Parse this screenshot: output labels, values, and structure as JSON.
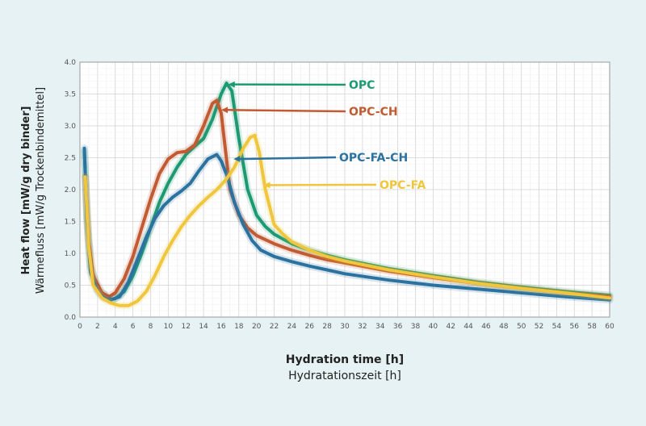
{
  "chart_data": {
    "type": "line",
    "title": "",
    "ylabel": "Heat flow [mW/g dry binder]",
    "ylabel_secondary": "Wärmefluss [mW/g Trockenbindemittel]",
    "xlabel": "Hydration time [h]",
    "xlabel_secondary": "Hydratationszeit [h]",
    "xlim": [
      0,
      60
    ],
    "ylim": [
      0,
      4.0
    ],
    "x_ticks": [
      "0",
      "2",
      "4",
      "6",
      "8",
      "10",
      "12",
      "14",
      "16",
      "18",
      "20",
      "22",
      "24",
      "26",
      "28",
      "30",
      "32",
      "34",
      "36",
      "38",
      "40",
      "42",
      "44",
      "46",
      "48",
      "50",
      "52",
      "54",
      "56",
      "58",
      "60"
    ],
    "y_ticks": [
      "0.0",
      "0.5",
      "1.0",
      "1.5",
      "2.0",
      "2.5",
      "3.0",
      "3.5",
      "4.0"
    ],
    "grid": true,
    "legend": "inline arrows at right",
    "series": [
      {
        "name": "OPC",
        "color": "#1e9a72",
        "points": [
          [
            0.5,
            2.6
          ],
          [
            0.8,
            1.6
          ],
          [
            1.2,
            0.8
          ],
          [
            2,
            0.45
          ],
          [
            3,
            0.32
          ],
          [
            3.5,
            0.28
          ],
          [
            4,
            0.29
          ],
          [
            5,
            0.4
          ],
          [
            6,
            0.65
          ],
          [
            7,
            1.0
          ],
          [
            8,
            1.4
          ],
          [
            9,
            1.8
          ],
          [
            10,
            2.1
          ],
          [
            11,
            2.35
          ],
          [
            12,
            2.55
          ],
          [
            13,
            2.68
          ],
          [
            14,
            2.8
          ],
          [
            15,
            3.1
          ],
          [
            16,
            3.5
          ],
          [
            16.6,
            3.67
          ],
          [
            17.2,
            3.55
          ],
          [
            18,
            2.8
          ],
          [
            19,
            2.0
          ],
          [
            20,
            1.6
          ],
          [
            21,
            1.42
          ],
          [
            22,
            1.3
          ],
          [
            24,
            1.15
          ],
          [
            26,
            1.05
          ],
          [
            28,
            0.97
          ],
          [
            30,
            0.9
          ],
          [
            35,
            0.76
          ],
          [
            40,
            0.65
          ],
          [
            45,
            0.55
          ],
          [
            50,
            0.47
          ],
          [
            55,
            0.4
          ],
          [
            60,
            0.34
          ]
        ]
      },
      {
        "name": "OPC-CH",
        "color": "#c25a32",
        "points": [
          [
            0.6,
            2.2
          ],
          [
            1,
            1.2
          ],
          [
            1.5,
            0.65
          ],
          [
            2.5,
            0.38
          ],
          [
            3.3,
            0.32
          ],
          [
            4,
            0.38
          ],
          [
            5,
            0.6
          ],
          [
            6,
            0.95
          ],
          [
            7,
            1.4
          ],
          [
            8,
            1.85
          ],
          [
            9,
            2.25
          ],
          [
            10,
            2.48
          ],
          [
            11,
            2.58
          ],
          [
            12,
            2.6
          ],
          [
            13,
            2.7
          ],
          [
            14,
            3.0
          ],
          [
            15,
            3.35
          ],
          [
            15.5,
            3.4
          ],
          [
            16,
            3.2
          ],
          [
            16.5,
            2.6
          ],
          [
            17,
            2.0
          ],
          [
            18,
            1.6
          ],
          [
            19,
            1.4
          ],
          [
            20,
            1.28
          ],
          [
            22,
            1.15
          ],
          [
            24,
            1.05
          ],
          [
            26,
            0.97
          ],
          [
            28,
            0.9
          ],
          [
            30,
            0.85
          ],
          [
            35,
            0.72
          ],
          [
            40,
            0.62
          ],
          [
            45,
            0.53
          ],
          [
            50,
            0.45
          ],
          [
            55,
            0.38
          ],
          [
            60,
            0.32
          ]
        ]
      },
      {
        "name": "OPC-FA-CH",
        "color": "#2b72a0",
        "points": [
          [
            0.5,
            2.65
          ],
          [
            0.8,
            1.5
          ],
          [
            1.2,
            0.7
          ],
          [
            2,
            0.4
          ],
          [
            2.7,
            0.3
          ],
          [
            3.5,
            0.27
          ],
          [
            4.5,
            0.32
          ],
          [
            5.5,
            0.55
          ],
          [
            6.5,
            0.9
          ],
          [
            7.5,
            1.25
          ],
          [
            8.5,
            1.55
          ],
          [
            9.5,
            1.75
          ],
          [
            10.5,
            1.88
          ],
          [
            11.5,
            1.98
          ],
          [
            12.5,
            2.1
          ],
          [
            13.5,
            2.3
          ],
          [
            14.5,
            2.48
          ],
          [
            15.5,
            2.55
          ],
          [
            16,
            2.45
          ],
          [
            16.7,
            2.2
          ],
          [
            17.5,
            1.8
          ],
          [
            18.5,
            1.45
          ],
          [
            19.5,
            1.2
          ],
          [
            20.5,
            1.05
          ],
          [
            22,
            0.95
          ],
          [
            24,
            0.87
          ],
          [
            26,
            0.8
          ],
          [
            28,
            0.74
          ],
          [
            30,
            0.68
          ],
          [
            35,
            0.58
          ],
          [
            40,
            0.5
          ],
          [
            45,
            0.44
          ],
          [
            50,
            0.38
          ],
          [
            55,
            0.32
          ],
          [
            60,
            0.27
          ]
        ]
      },
      {
        "name": "OPC-FA",
        "color": "#f0c63c",
        "points": [
          [
            0.6,
            2.2
          ],
          [
            1,
            1.1
          ],
          [
            1.5,
            0.5
          ],
          [
            2.5,
            0.3
          ],
          [
            3.5,
            0.22
          ],
          [
            4.5,
            0.18
          ],
          [
            5.5,
            0.18
          ],
          [
            6.5,
            0.25
          ],
          [
            7.5,
            0.4
          ],
          [
            8.5,
            0.65
          ],
          [
            9.5,
            0.95
          ],
          [
            10.5,
            1.2
          ],
          [
            11.5,
            1.42
          ],
          [
            12.5,
            1.6
          ],
          [
            13.5,
            1.75
          ],
          [
            14.5,
            1.88
          ],
          [
            15.5,
            2.0
          ],
          [
            16.5,
            2.15
          ],
          [
            17.5,
            2.35
          ],
          [
            18.5,
            2.65
          ],
          [
            19.3,
            2.82
          ],
          [
            19.8,
            2.85
          ],
          [
            20.3,
            2.6
          ],
          [
            21,
            2.0
          ],
          [
            22,
            1.45
          ],
          [
            23,
            1.3
          ],
          [
            24,
            1.18
          ],
          [
            26,
            1.05
          ],
          [
            28,
            0.95
          ],
          [
            30,
            0.88
          ],
          [
            35,
            0.74
          ],
          [
            40,
            0.63
          ],
          [
            45,
            0.53
          ],
          [
            50,
            0.45
          ],
          [
            55,
            0.38
          ],
          [
            60,
            0.3
          ]
        ]
      }
    ],
    "annotations": [
      {
        "text": "OPC",
        "series": "OPC",
        "arrow_to": [
          16.8,
          3.65
        ]
      },
      {
        "text": "OPC-CH",
        "series": "OPC-CH",
        "arrow_to": [
          16.0,
          3.25
        ]
      },
      {
        "text": "OPC-FA-CH",
        "series": "OPC-FA-CH",
        "arrow_to": [
          17.4,
          2.48
        ]
      },
      {
        "text": "OPC-FA",
        "series": "OPC-FA",
        "arrow_to": [
          20.8,
          2.07
        ]
      }
    ]
  }
}
